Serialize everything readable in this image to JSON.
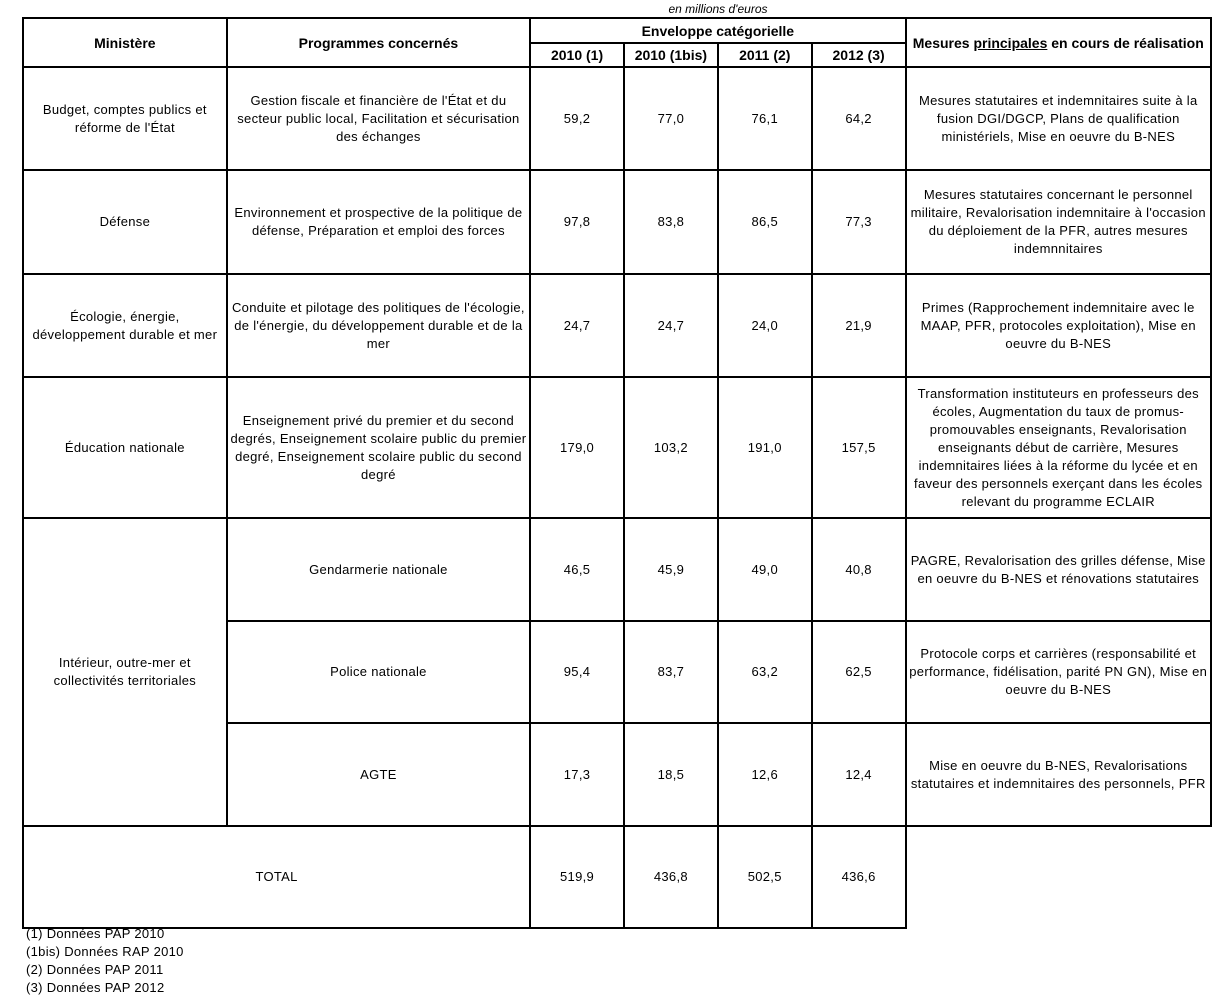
{
  "unit_note": "en millions d'euros",
  "headers": {
    "ministere": "Ministère",
    "programmes": "Programmes concernés",
    "enveloppe": "Enveloppe catégorielle",
    "years": [
      "2010 (1)",
      "2010 (1bis)",
      "2011 (2)",
      "2012 (3)"
    ],
    "mesures_pre": "Mesures ",
    "mesures_ul": "principales",
    "mesures_post": " en cours de réalisation"
  },
  "rows": [
    {
      "ministere": "Budget, comptes publics et réforme de l'État",
      "programme": "Gestion fiscale et financière de l'État et du secteur public local, Facilitation et sécurisation des échanges",
      "values": [
        "59,2",
        "77,0",
        "76,1",
        "64,2"
      ],
      "mesures": "Mesures statutaires et indemnitaires suite à la fusion DGI/DGCP, Plans de qualification ministériels, Mise en oeuvre du B-NES"
    },
    {
      "ministere": "Défense",
      "programme": "Environnement et prospective de la politique de défense, Préparation et emploi des forces",
      "values": [
        "97,8",
        "83,8",
        "86,5",
        "77,3"
      ],
      "mesures": "Mesures statutaires concernant le personnel militaire, Revalorisation indemnitaire à l'occasion du déploiement de la PFR, autres mesures indemnnitaires"
    },
    {
      "ministere": "Écologie, énergie, développement durable et mer",
      "programme": "Conduite et pilotage des politiques de l'écologie, de l'énergie, du développement durable et de la mer",
      "values": [
        "24,7",
        "24,7",
        "24,0",
        "21,9"
      ],
      "mesures": "Primes (Rapprochement indemnitaire avec le MAAP, PFR, protocoles exploitation), Mise en oeuvre du B-NES"
    },
    {
      "ministere": "Éducation nationale",
      "programme": "Enseignement privé du premier et du second degrés, Enseignement scolaire public du premier degré, Enseignement scolaire public du second degré",
      "values": [
        "179,0",
        "103,2",
        "191,0",
        "157,5"
      ],
      "mesures": "Transformation instituteurs en professeurs des écoles, Augmentation du taux de promus-promouvables enseignants, Revalorisation enseignants début de carrière, Mesures indemnitaires liées à la réforme du lycée et en faveur des personnels exerçant dans les écoles relevant du programme ECLAIR"
    }
  ],
  "interieur": {
    "ministere": "Intérieur, outre-mer et collectivités territoriales",
    "sub": [
      {
        "programme": "Gendarmerie nationale",
        "values": [
          "46,5",
          "45,9",
          "49,0",
          "40,8"
        ],
        "mesures": "PAGRE, Revalorisation des grilles défense, Mise en oeuvre du B-NES et rénovations statutaires"
      },
      {
        "programme": "Police nationale",
        "values": [
          "95,4",
          "83,7",
          "63,2",
          "62,5"
        ],
        "mesures": "Protocole corps et carrières (responsabilité et performance, fidélisation, parité PN GN), Mise en oeuvre du B-NES"
      },
      {
        "programme": "AGTE",
        "values": [
          "17,3",
          "18,5",
          "12,6",
          "12,4"
        ],
        "mesures": "Mise en oeuvre du B-NES, Revalorisations statutaires et indemnitaires des personnels, PFR"
      }
    ]
  },
  "total": {
    "label": "TOTAL",
    "values": [
      "519,9",
      "436,8",
      "502,5",
      "436,6"
    ]
  },
  "footnotes": [
    "(1) Données PAP 2010",
    "(1bis) Données RAP 2010",
    "(2) Données PAP 2011",
    "(3) Données PAP 2012"
  ]
}
